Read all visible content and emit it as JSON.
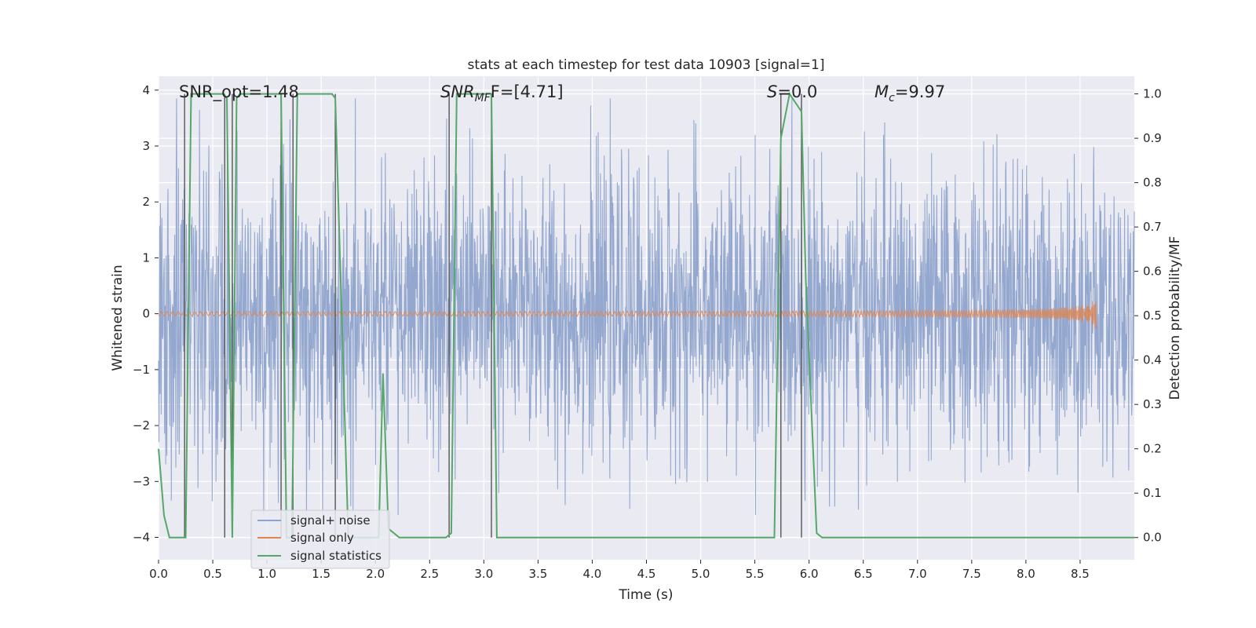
{
  "chart_data": {
    "type": "line",
    "title": "stats at each timestep for test data 10903 [signal=1]",
    "xlabel": "Time (s)",
    "ylabel": "Whitened strain",
    "y2label": "Detection probability/MF",
    "xlim": [
      0,
      9.0
    ],
    "ylim": [
      -4.4,
      4.25
    ],
    "y2lim": [
      -0.05,
      1.04
    ],
    "xticks": [
      "0.0",
      "0.5",
      "1.0",
      "1.5",
      "2.0",
      "2.5",
      "3.0",
      "3.5",
      "4.0",
      "4.5",
      "5.0",
      "5.5",
      "6.0",
      "6.5",
      "7.0",
      "7.5",
      "8.0",
      "8.5"
    ],
    "yticks": [
      "4",
      "3",
      "2",
      "1",
      "0",
      "−1",
      "−2",
      "−3",
      "−4"
    ],
    "y2ticks": [
      "1.0",
      "0.9",
      "0.8",
      "0.7",
      "0.6",
      "0.5",
      "0.4",
      "0.3",
      "0.2",
      "0.1",
      "0.0"
    ],
    "grid": true,
    "legend_position": "lower-left",
    "annotations": {
      "snr_opt": "SNR_opt=1.48",
      "snr_mf_main": "SNR",
      "snr_mf_sub": "MF",
      "snr_mf_rest": "F=[4.71]",
      "s_var": "S",
      "s_rest": "=0.0",
      "mc_var": "M",
      "mc_sub": "c",
      "mc_rest": "=9.97"
    },
    "series": [
      {
        "name": "signal+ noise",
        "color": "#8fa4cc",
        "description_values": {
          "duration_s": 9.0,
          "typical_amplitude": 1.5,
          "max": 3.85,
          "min": -3.6
        }
      },
      {
        "name": "signal only",
        "color": "#dd8452",
        "chirp": {
          "start_s": 0.0,
          "end_s": 8.65,
          "peak_amplitude": 0.28
        }
      },
      {
        "name": "signal statistics",
        "color": "#55a868",
        "x": [
          0.0,
          0.05,
          0.1,
          0.25,
          0.3,
          0.6,
          0.63,
          0.68,
          0.72,
          0.75,
          1.13,
          1.18,
          1.23,
          1.28,
          1.6,
          1.63,
          1.75,
          1.95,
          2.03,
          2.07,
          2.12,
          2.22,
          2.65,
          2.7,
          2.75,
          3.07,
          3.12,
          3.17,
          5.68,
          5.74,
          5.82,
          5.93,
          5.97,
          6.07,
          6.12,
          9.0
        ],
        "values": [
          0.2,
          0.05,
          0.0,
          0.0,
          1.0,
          1.0,
          0.99,
          0.0,
          0.99,
          1.0,
          1.0,
          0.0,
          0.0,
          1.0,
          1.0,
          0.99,
          0.0,
          0.0,
          0.0,
          0.37,
          0.02,
          0.0,
          0.0,
          0.01,
          1.0,
          1.0,
          0.0,
          0.0,
          0.0,
          0.9,
          1.0,
          0.96,
          0.58,
          0.01,
          0.0,
          0.0
        ]
      }
    ],
    "vertical_markers": [
      0.24,
      0.61,
      0.68,
      1.13,
      1.24,
      1.63,
      2.68,
      3.07,
      5.74,
      5.93
    ]
  }
}
